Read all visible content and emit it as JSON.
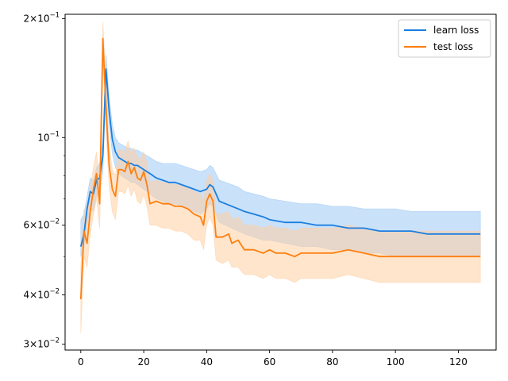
{
  "chart_data": {
    "type": "line",
    "title": "",
    "xlabel": "",
    "ylabel": "",
    "xlim": [
      -5,
      132
    ],
    "ylim": [
      0.029,
      0.205
    ],
    "yscale": "log",
    "grid": false,
    "legend_position": "top-right",
    "x_ticks": [
      0,
      20,
      40,
      60,
      80,
      100,
      120
    ],
    "y_ticks": [
      {
        "value": 0.2,
        "mantissa": "2",
        "exponent": "-1"
      },
      {
        "value": 0.1,
        "mantissa": "",
        "exponent": "-1"
      },
      {
        "value": 0.06,
        "mantissa": "6",
        "exponent": "-2"
      },
      {
        "value": 0.04,
        "mantissa": "4",
        "exponent": "-2"
      },
      {
        "value": 0.03,
        "mantissa": "3",
        "exponent": "-2"
      }
    ],
    "y_minor_ticks": [
      0.05,
      0.07,
      0.08,
      0.09
    ],
    "series": [
      {
        "name": "learn loss",
        "color": "#1a7fe0",
        "band_color": "#9ec9f5",
        "points": [
          [
            0,
            0.053
          ],
          [
            1,
            0.057
          ],
          [
            2,
            0.066
          ],
          [
            3,
            0.073
          ],
          [
            4,
            0.072
          ],
          [
            5,
            0.078
          ],
          [
            6,
            0.079
          ],
          [
            7,
            0.09
          ],
          [
            8,
            0.149
          ],
          [
            9,
            0.117
          ],
          [
            10,
            0.099
          ],
          [
            11,
            0.092
          ],
          [
            12,
            0.089
          ],
          [
            13,
            0.088
          ],
          [
            14,
            0.087
          ],
          [
            15,
            0.086
          ],
          [
            16,
            0.086
          ],
          [
            17,
            0.085
          ],
          [
            18,
            0.085
          ],
          [
            19,
            0.084
          ],
          [
            20,
            0.083
          ],
          [
            21,
            0.082
          ],
          [
            22,
            0.081
          ],
          [
            24,
            0.079
          ],
          [
            26,
            0.078
          ],
          [
            28,
            0.077
          ],
          [
            30,
            0.077
          ],
          [
            32,
            0.076
          ],
          [
            34,
            0.075
          ],
          [
            36,
            0.074
          ],
          [
            38,
            0.073
          ],
          [
            40,
            0.074
          ],
          [
            41,
            0.076
          ],
          [
            42,
            0.075
          ],
          [
            44,
            0.069
          ],
          [
            46,
            0.068
          ],
          [
            48,
            0.067
          ],
          [
            50,
            0.066
          ],
          [
            52,
            0.065
          ],
          [
            55,
            0.064
          ],
          [
            58,
            0.063
          ],
          [
            60,
            0.062
          ],
          [
            65,
            0.061
          ],
          [
            70,
            0.061
          ],
          [
            75,
            0.06
          ],
          [
            80,
            0.06
          ],
          [
            85,
            0.059
          ],
          [
            90,
            0.059
          ],
          [
            95,
            0.058
          ],
          [
            100,
            0.058
          ],
          [
            105,
            0.058
          ],
          [
            110,
            0.057
          ],
          [
            115,
            0.057
          ],
          [
            120,
            0.057
          ],
          [
            127,
            0.057
          ]
        ],
        "band": [
          [
            0,
            0.05,
            0.062
          ],
          [
            1,
            0.053,
            0.064
          ],
          [
            2,
            0.06,
            0.071
          ],
          [
            3,
            0.066,
            0.079
          ],
          [
            4,
            0.065,
            0.078
          ],
          [
            5,
            0.071,
            0.084
          ],
          [
            6,
            0.072,
            0.086
          ],
          [
            7,
            0.082,
            0.098
          ],
          [
            8,
            0.139,
            0.162
          ],
          [
            9,
            0.108,
            0.127
          ],
          [
            10,
            0.091,
            0.108
          ],
          [
            11,
            0.084,
            0.1
          ],
          [
            12,
            0.081,
            0.097
          ],
          [
            13,
            0.08,
            0.096
          ],
          [
            14,
            0.079,
            0.095
          ],
          [
            15,
            0.078,
            0.094
          ],
          [
            16,
            0.077,
            0.094
          ],
          [
            17,
            0.077,
            0.093
          ],
          [
            18,
            0.076,
            0.093
          ],
          [
            19,
            0.075,
            0.092
          ],
          [
            20,
            0.074,
            0.091
          ],
          [
            21,
            0.073,
            0.09
          ],
          [
            22,
            0.072,
            0.089
          ],
          [
            24,
            0.07,
            0.087
          ],
          [
            26,
            0.069,
            0.086
          ],
          [
            28,
            0.068,
            0.086
          ],
          [
            30,
            0.068,
            0.086
          ],
          [
            32,
            0.067,
            0.085
          ],
          [
            34,
            0.066,
            0.084
          ],
          [
            36,
            0.065,
            0.083
          ],
          [
            38,
            0.064,
            0.082
          ],
          [
            40,
            0.066,
            0.083
          ],
          [
            41,
            0.068,
            0.085
          ],
          [
            42,
            0.067,
            0.084
          ],
          [
            44,
            0.061,
            0.078
          ],
          [
            46,
            0.06,
            0.077
          ],
          [
            48,
            0.059,
            0.076
          ],
          [
            50,
            0.058,
            0.075
          ],
          [
            52,
            0.057,
            0.073
          ],
          [
            55,
            0.056,
            0.072
          ],
          [
            58,
            0.055,
            0.071
          ],
          [
            60,
            0.055,
            0.07
          ],
          [
            65,
            0.054,
            0.069
          ],
          [
            70,
            0.053,
            0.068
          ],
          [
            75,
            0.053,
            0.068
          ],
          [
            80,
            0.052,
            0.067
          ],
          [
            85,
            0.052,
            0.067
          ],
          [
            90,
            0.051,
            0.066
          ],
          [
            95,
            0.051,
            0.066
          ],
          [
            100,
            0.05,
            0.066
          ],
          [
            105,
            0.05,
            0.065
          ],
          [
            110,
            0.05,
            0.065
          ],
          [
            115,
            0.05,
            0.065
          ],
          [
            120,
            0.05,
            0.065
          ],
          [
            127,
            0.05,
            0.065
          ]
        ]
      },
      {
        "name": "test loss",
        "color": "#ff7f0e",
        "band_color": "#ffcfa3",
        "points": [
          [
            0,
            0.039
          ],
          [
            1,
            0.058
          ],
          [
            2,
            0.054
          ],
          [
            3,
            0.065
          ],
          [
            4,
            0.074
          ],
          [
            5,
            0.081
          ],
          [
            6,
            0.068
          ],
          [
            7,
            0.178
          ],
          [
            8,
            0.12
          ],
          [
            9,
            0.085
          ],
          [
            10,
            0.074
          ],
          [
            11,
            0.071
          ],
          [
            12,
            0.083
          ],
          [
            13,
            0.083
          ],
          [
            14,
            0.082
          ],
          [
            15,
            0.087
          ],
          [
            16,
            0.081
          ],
          [
            17,
            0.084
          ],
          [
            18,
            0.079
          ],
          [
            19,
            0.078
          ],
          [
            20,
            0.082
          ],
          [
            21,
            0.076
          ],
          [
            22,
            0.068
          ],
          [
            24,
            0.069
          ],
          [
            26,
            0.068
          ],
          [
            28,
            0.068
          ],
          [
            30,
            0.067
          ],
          [
            32,
            0.067
          ],
          [
            34,
            0.066
          ],
          [
            36,
            0.064
          ],
          [
            38,
            0.063
          ],
          [
            39,
            0.06
          ],
          [
            40,
            0.069
          ],
          [
            41,
            0.072
          ],
          [
            42,
            0.069
          ],
          [
            43,
            0.056
          ],
          [
            45,
            0.056
          ],
          [
            47,
            0.057
          ],
          [
            48,
            0.054
          ],
          [
            50,
            0.055
          ],
          [
            52,
            0.052
          ],
          [
            55,
            0.052
          ],
          [
            58,
            0.051
          ],
          [
            60,
            0.052
          ],
          [
            62,
            0.051
          ],
          [
            65,
            0.051
          ],
          [
            68,
            0.05
          ],
          [
            70,
            0.051
          ],
          [
            75,
            0.051
          ],
          [
            80,
            0.051
          ],
          [
            85,
            0.052
          ],
          [
            90,
            0.051
          ],
          [
            95,
            0.05
          ],
          [
            100,
            0.05
          ],
          [
            105,
            0.05
          ],
          [
            110,
            0.05
          ],
          [
            115,
            0.05
          ],
          [
            120,
            0.05
          ],
          [
            127,
            0.05
          ]
        ],
        "band": [
          [
            0,
            0.032,
            0.047
          ],
          [
            1,
            0.05,
            0.066
          ],
          [
            2,
            0.047,
            0.062
          ],
          [
            3,
            0.057,
            0.074
          ],
          [
            4,
            0.064,
            0.084
          ],
          [
            5,
            0.07,
            0.092
          ],
          [
            6,
            0.059,
            0.078
          ],
          [
            7,
            0.16,
            0.196
          ],
          [
            8,
            0.105,
            0.136
          ],
          [
            9,
            0.075,
            0.096
          ],
          [
            10,
            0.065,
            0.083
          ],
          [
            11,
            0.062,
            0.08
          ],
          [
            12,
            0.073,
            0.093
          ],
          [
            13,
            0.073,
            0.093
          ],
          [
            14,
            0.072,
            0.092
          ],
          [
            15,
            0.076,
            0.098
          ],
          [
            16,
            0.071,
            0.091
          ],
          [
            17,
            0.074,
            0.094
          ],
          [
            18,
            0.069,
            0.089
          ],
          [
            19,
            0.068,
            0.088
          ],
          [
            20,
            0.072,
            0.092
          ],
          [
            21,
            0.067,
            0.086
          ],
          [
            22,
            0.06,
            0.077
          ],
          [
            24,
            0.06,
            0.078
          ],
          [
            26,
            0.059,
            0.077
          ],
          [
            28,
            0.059,
            0.077
          ],
          [
            30,
            0.058,
            0.076
          ],
          [
            32,
            0.058,
            0.076
          ],
          [
            34,
            0.057,
            0.075
          ],
          [
            36,
            0.055,
            0.073
          ],
          [
            38,
            0.055,
            0.072
          ],
          [
            39,
            0.052,
            0.069
          ],
          [
            40,
            0.06,
            0.078
          ],
          [
            41,
            0.063,
            0.081
          ],
          [
            42,
            0.06,
            0.078
          ],
          [
            43,
            0.049,
            0.064
          ],
          [
            45,
            0.048,
            0.064
          ],
          [
            47,
            0.049,
            0.065
          ],
          [
            48,
            0.047,
            0.062
          ],
          [
            50,
            0.047,
            0.063
          ],
          [
            52,
            0.045,
            0.06
          ],
          [
            55,
            0.045,
            0.06
          ],
          [
            58,
            0.044,
            0.059
          ],
          [
            60,
            0.045,
            0.06
          ],
          [
            62,
            0.044,
            0.059
          ],
          [
            65,
            0.044,
            0.059
          ],
          [
            68,
            0.043,
            0.058
          ],
          [
            70,
            0.044,
            0.059
          ],
          [
            75,
            0.044,
            0.059
          ],
          [
            80,
            0.044,
            0.059
          ],
          [
            85,
            0.045,
            0.06
          ],
          [
            90,
            0.044,
            0.059
          ],
          [
            95,
            0.043,
            0.058
          ],
          [
            100,
            0.043,
            0.058
          ],
          [
            105,
            0.043,
            0.058
          ],
          [
            110,
            0.043,
            0.058
          ],
          [
            115,
            0.043,
            0.058
          ],
          [
            120,
            0.043,
            0.058
          ],
          [
            127,
            0.043,
            0.058
          ]
        ]
      }
    ]
  }
}
